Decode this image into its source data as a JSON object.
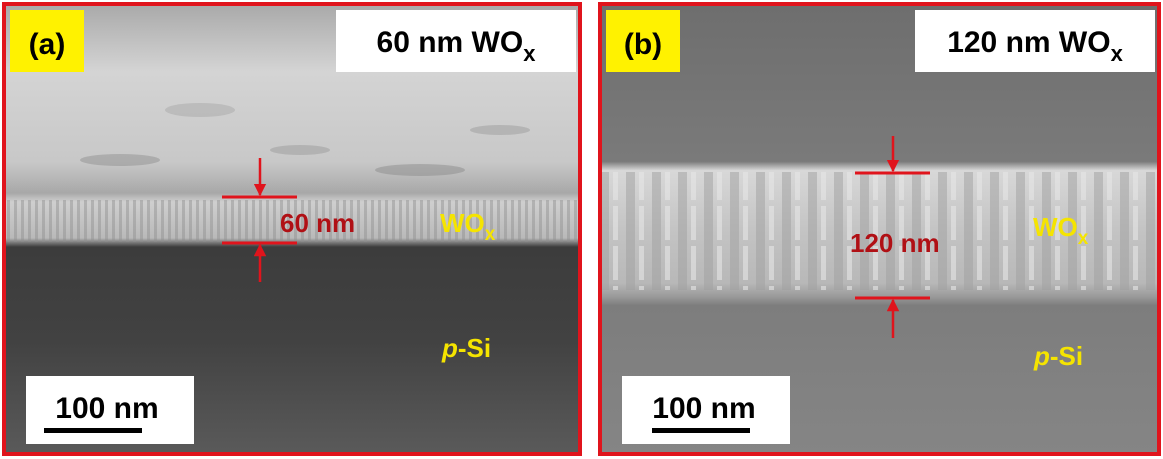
{
  "panels": [
    {
      "label": "(a)",
      "title": {
        "text": "60 nm WO",
        "subscript": "x"
      },
      "thickness": "60 nm",
      "layer": {
        "text": "WO",
        "subscript": "x"
      },
      "substrate": {
        "italic": "p",
        "text": "-Si"
      },
      "scale_bar": "100 nm"
    },
    {
      "label": "(b)",
      "title": {
        "text": "120 nm WO",
        "subscript": "x"
      },
      "thickness": "120 nm",
      "layer": {
        "text": "WO",
        "subscript": "x"
      },
      "substrate": {
        "italic": "p",
        "text": "-Si"
      },
      "scale_bar": "100 nm"
    }
  ]
}
